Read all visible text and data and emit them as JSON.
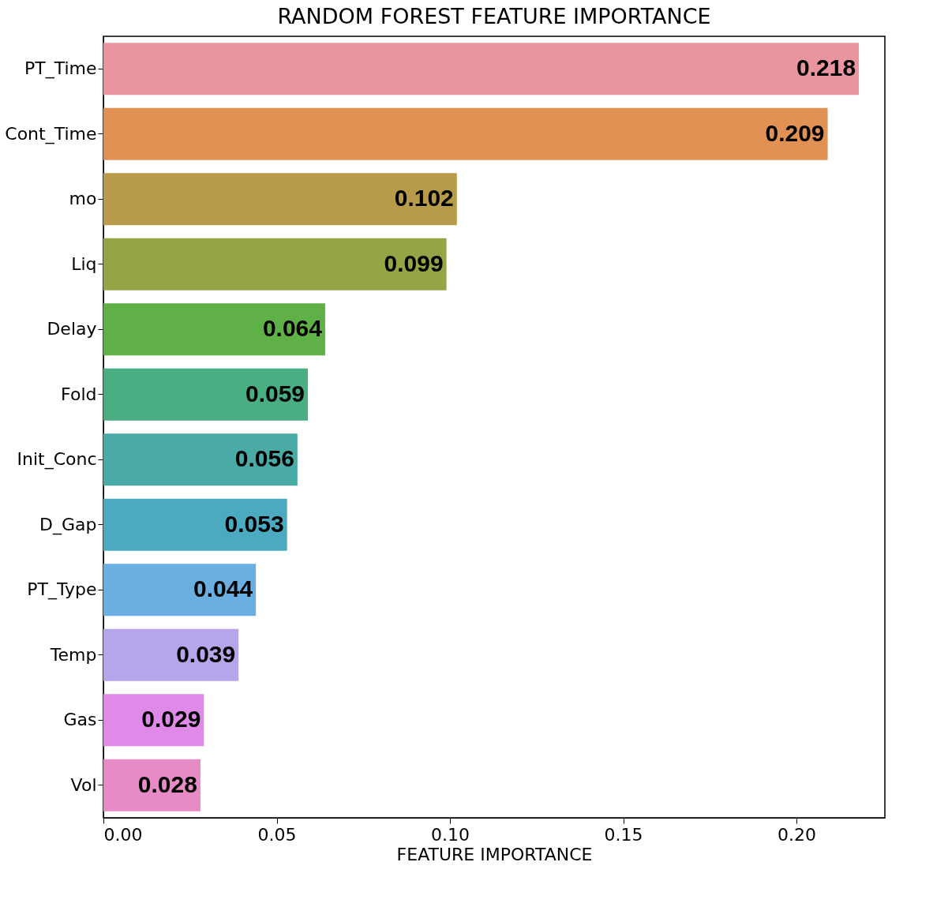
{
  "chart_data": {
    "type": "bar",
    "orientation": "horizontal",
    "title": "RANDOM FOREST FEATURE IMPORTANCE",
    "xlabel": "FEATURE IMPORTANCE",
    "categories": [
      "PT_Time",
      "Cont_Time",
      "mo",
      "Liq",
      "Delay",
      "Fold",
      "Init_Conc",
      "D_Gap",
      "PT_Type",
      "Temp",
      "Gas",
      "Vol"
    ],
    "values": [
      0.218,
      0.209,
      0.102,
      0.099,
      0.064,
      0.059,
      0.056,
      0.053,
      0.044,
      0.039,
      0.029,
      0.028
    ],
    "colors": [
      "#e8959f",
      "#e09153",
      "#b89b4a",
      "#97a445",
      "#60b048",
      "#4aae83",
      "#4aaba6",
      "#4baabf",
      "#6aaee2",
      "#b6a5ea",
      "#df8ae8",
      "#e68bc5"
    ],
    "xlim": [
      0,
      0.2255
    ],
    "xticks": [
      {
        "value": 0,
        "label": "0.00"
      },
      {
        "value": 0.05,
        "label": "0.05"
      },
      {
        "value": 0.1,
        "label": "0.10"
      },
      {
        "value": 0.15,
        "label": "0.15"
      },
      {
        "value": 0.2,
        "label": "0.20"
      }
    ],
    "data_labels": true,
    "grid": false
  }
}
